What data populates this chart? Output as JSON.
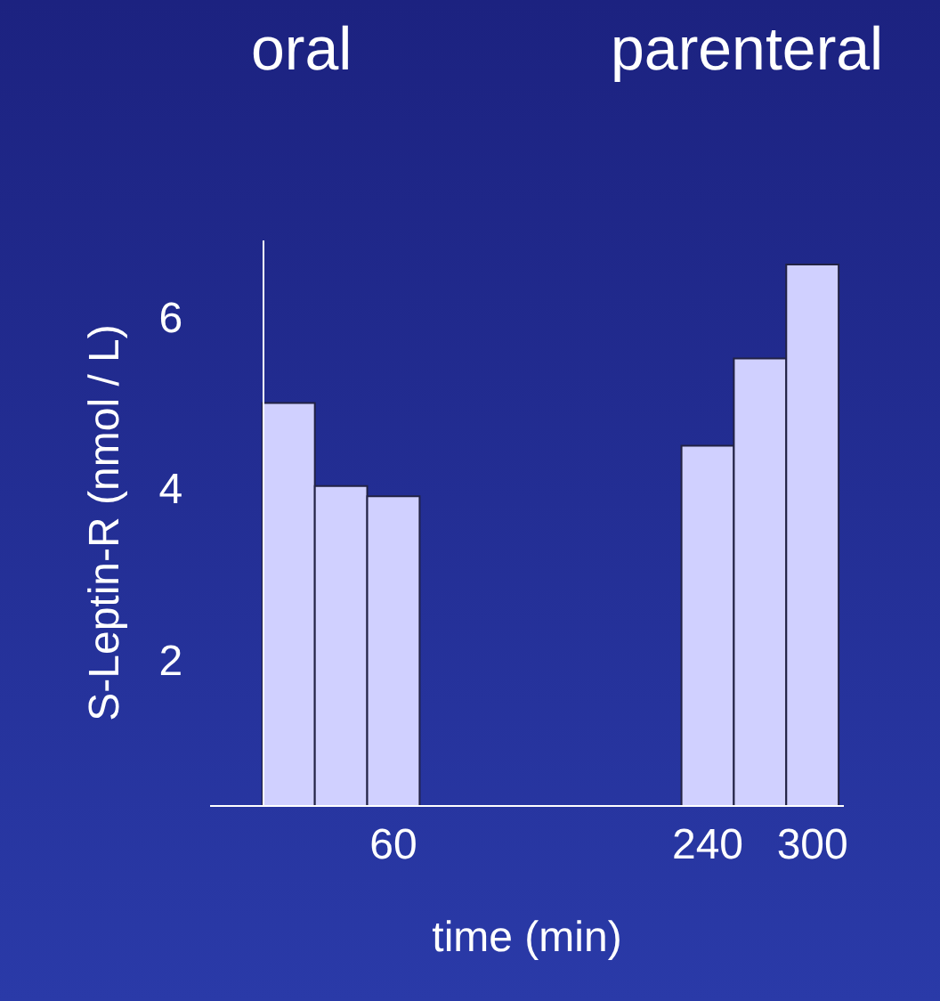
{
  "chart_data": {
    "type": "bar",
    "x": [
      0,
      30,
      60,
      240,
      270,
      300
    ],
    "values": [
      5.0,
      4.03,
      3.91,
      4.5,
      5.52,
      6.62
    ],
    "color": "#d0d0ff",
    "xlabel": "time (min)",
    "ylabel": "S-Leptin-R (nmol / L)",
    "annotations": [
      "oral",
      "parenteral"
    ],
    "xlim": [
      -45,
      318
    ],
    "xticks": [
      60,
      240,
      300
    ],
    "ylim": [
      0.3,
      6.9
    ],
    "yticks": [
      2,
      4,
      6
    ],
    "grid": false,
    "legend": false
  }
}
